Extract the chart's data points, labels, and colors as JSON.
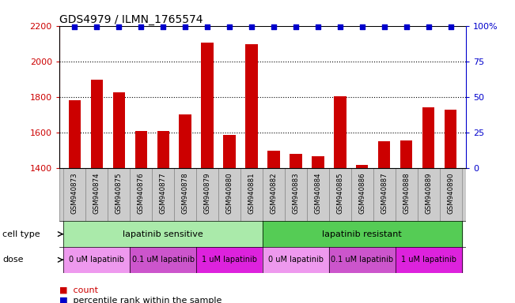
{
  "title": "GDS4979 / ILMN_1765574",
  "samples": [
    "GSM940873",
    "GSM940874",
    "GSM940875",
    "GSM940876",
    "GSM940877",
    "GSM940878",
    "GSM940879",
    "GSM940880",
    "GSM940881",
    "GSM940882",
    "GSM940883",
    "GSM940884",
    "GSM940885",
    "GSM940886",
    "GSM940887",
    "GSM940888",
    "GSM940889",
    "GSM940890"
  ],
  "bar_values": [
    1780,
    1895,
    1825,
    1610,
    1610,
    1700,
    2105,
    1585,
    2095,
    1500,
    1480,
    1465,
    1805,
    1420,
    1550,
    1555,
    1740,
    1730
  ],
  "percentile_values": [
    99,
    99,
    99,
    99,
    99,
    99,
    99,
    99,
    99,
    99,
    99,
    99,
    99,
    99,
    99,
    99,
    99,
    99
  ],
  "bar_color": "#cc0000",
  "percentile_color": "#0000cc",
  "ylim_left": [
    1400,
    2200
  ],
  "ylim_right": [
    0,
    100
  ],
  "yticks_left": [
    1400,
    1600,
    1800,
    2000,
    2200
  ],
  "yticks_right": [
    0,
    25,
    50,
    75,
    100
  ],
  "ytick_labels_right": [
    "0",
    "25",
    "50",
    "75",
    "100%"
  ],
  "grid_values": [
    1600,
    1800,
    2000
  ],
  "cell_type_groups": [
    {
      "label": "lapatinib sensitive",
      "start": 0,
      "end": 9,
      "color": "#aaeaaa"
    },
    {
      "label": "lapatinib resistant",
      "start": 9,
      "end": 18,
      "color": "#55cc55"
    }
  ],
  "dose_groups": [
    {
      "label": "0 uM lapatinib",
      "start": 0,
      "end": 3,
      "color": "#ee99ee"
    },
    {
      "label": "0.1 uM lapatinib",
      "start": 3,
      "end": 6,
      "color": "#cc55cc"
    },
    {
      "label": "1 uM lapatinib",
      "start": 6,
      "end": 9,
      "color": "#dd22dd"
    },
    {
      "label": "0 uM lapatinib",
      "start": 9,
      "end": 12,
      "color": "#ee99ee"
    },
    {
      "label": "0.1 uM lapatinib",
      "start": 12,
      "end": 15,
      "color": "#cc55cc"
    },
    {
      "label": "1 uM lapatinib",
      "start": 15,
      "end": 18,
      "color": "#dd22dd"
    }
  ],
  "legend_count_color": "#cc0000",
  "legend_percentile_color": "#0000cc",
  "cell_type_label": "cell type",
  "dose_label": "dose",
  "tick_color_left": "#cc0000",
  "tick_color_right": "#0000cc",
  "bar_bottom": 1400,
  "sample_box_color": "#cccccc",
  "sample_box_edge": "#888888"
}
